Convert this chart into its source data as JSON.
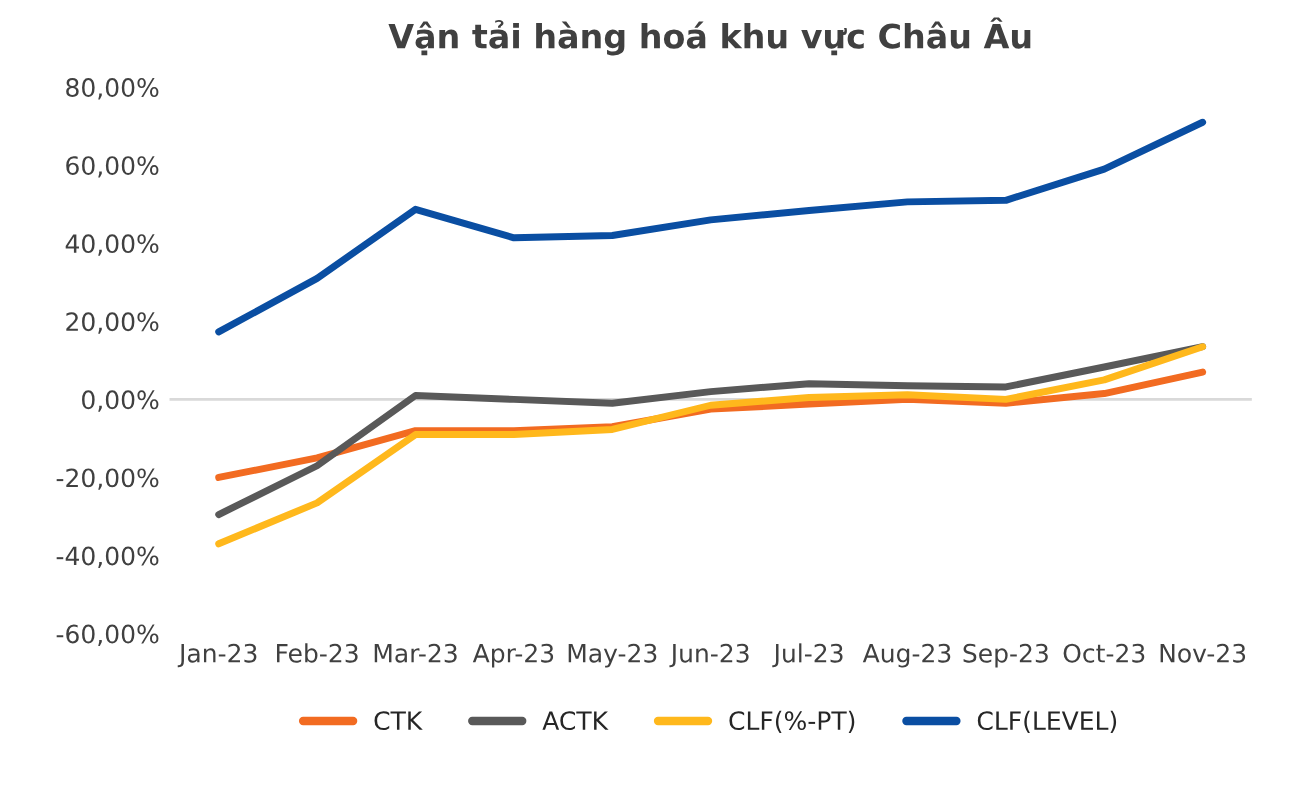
{
  "chart_data": {
    "type": "line",
    "title": "Vận tải hàng hoá khu vực Châu Âu",
    "categories": [
      "Jan-23",
      "Feb-23",
      "Mar-23",
      "Apr-23",
      "May-23",
      "Jun-23",
      "Jul-23",
      "Aug-23",
      "Sep-23",
      "Oct-23",
      "Nov-23"
    ],
    "series": [
      {
        "name": "CTK",
        "color": "#f26b21",
        "values": [
          -20,
          -15,
          -8,
          -8,
          -7,
          -2.5,
          -1.2,
          0,
          -1,
          1.5,
          7
        ]
      },
      {
        "name": "ACTK",
        "color": "#595959",
        "values": [
          -29.5,
          -17,
          1,
          0,
          -1,
          2,
          4,
          3.5,
          3.2,
          8.3,
          13.5
        ]
      },
      {
        "name": "CLF(%-PT)",
        "color": "#ffb81c",
        "values": [
          -37,
          -26.5,
          -9,
          -9,
          -7.7,
          -1.5,
          0.5,
          1.2,
          0,
          5,
          13.5
        ]
      },
      {
        "name": "CLF(LEVEL)",
        "color": "#0a4ea2",
        "values": [
          17.3,
          31,
          48.7,
          41.4,
          42,
          46,
          48.4,
          50.6,
          51,
          59,
          71
        ]
      }
    ],
    "ylim": [
      -60,
      80
    ],
    "yticks": [
      {
        "value": -60,
        "label": "-60,00%"
      },
      {
        "value": -40,
        "label": "-40,00%"
      },
      {
        "value": -20,
        "label": "-20,00%"
      },
      {
        "value": 0,
        "label": "0,00%"
      },
      {
        "value": 20,
        "label": "20,00%"
      },
      {
        "value": 40,
        "label": "40,00%"
      },
      {
        "value": 60,
        "label": "60,00%"
      },
      {
        "value": 80,
        "label": "80,00%"
      }
    ],
    "ref_lines": [
      {
        "axis": "y",
        "value": 0,
        "color": "#d9d9d9"
      }
    ],
    "grid": false,
    "legend": "bottom",
    "line_style": "solid",
    "marker": "none"
  }
}
